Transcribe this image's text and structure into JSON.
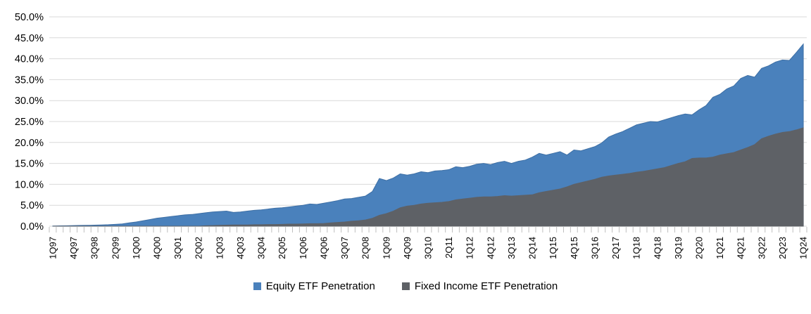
{
  "chart_data": {
    "type": "area",
    "overlapping_series": true,
    "title": "",
    "xlabel": "",
    "ylabel": "",
    "background_color": "#FFFFFF",
    "grid": {
      "visible": true,
      "color": "#D9D9D9",
      "axis_tick_color": "#BFBFBF"
    },
    "y_axis": {
      "min": 0,
      "max": 50,
      "step": 5,
      "tick_labels": [
        "50.0%",
        "45.0%",
        "40.0%",
        "35.0%",
        "30.0%",
        "25.0%",
        "20.0%",
        "15.0%",
        "10.0%",
        "5.0%",
        "0.0%"
      ]
    },
    "x_axis": {
      "frequency": "quarterly",
      "start": "1Q97",
      "end": "1Q24",
      "tick_label_interval": 3,
      "tick_labels": [
        "1Q97",
        "4Q97",
        "3Q98",
        "2Q99",
        "1Q00",
        "4Q00",
        "3Q01",
        "2Q02",
        "1Q03",
        "4Q03",
        "3Q04",
        "2Q05",
        "1Q06",
        "4Q06",
        "3Q07",
        "2Q08",
        "1Q09",
        "4Q09",
        "3Q10",
        "2Q11",
        "1Q12",
        "4Q12",
        "3Q13",
        "2Q14",
        "1Q15",
        "4Q15",
        "3Q16",
        "2Q17",
        "1Q18",
        "4Q18",
        "3Q19",
        "2Q20",
        "1Q21",
        "4Q21",
        "3Q22",
        "2Q23",
        "1Q24"
      ]
    },
    "legend": {
      "position": "bottom-center",
      "items": [
        {
          "label": "Equity ETF Penetration",
          "color": "#4A81BC"
        },
        {
          "label": "Fixed Income ETF Penetration",
          "color": "#5E6166"
        }
      ]
    },
    "series": [
      {
        "name": "Equity ETF Penetration",
        "color": "#4A81BC",
        "edge_color": "#3D6FA5",
        "values": [
          0.05,
          0.08,
          0.1,
          0.15,
          0.18,
          0.2,
          0.25,
          0.3,
          0.35,
          0.45,
          0.55,
          0.8,
          1.0,
          1.3,
          1.6,
          1.9,
          2.1,
          2.3,
          2.5,
          2.7,
          2.8,
          3.0,
          3.2,
          3.4,
          3.5,
          3.6,
          3.3,
          3.4,
          3.6,
          3.8,
          3.9,
          4.1,
          4.3,
          4.4,
          4.6,
          4.8,
          5.0,
          5.3,
          5.2,
          5.5,
          5.8,
          6.1,
          6.5,
          6.6,
          6.9,
          7.2,
          8.3,
          11.4,
          10.9,
          11.5,
          12.5,
          12.2,
          12.5,
          13.0,
          12.8,
          13.2,
          13.3,
          13.5,
          14.2,
          14.0,
          14.3,
          14.8,
          15.0,
          14.7,
          15.2,
          15.5,
          15.0,
          15.5,
          15.8,
          16.5,
          17.4,
          17.0,
          17.4,
          17.8,
          17.0,
          18.2,
          18.0,
          18.5,
          19.0,
          19.9,
          21.3,
          22.0,
          22.6,
          23.4,
          24.2,
          24.6,
          25.0,
          24.9,
          25.4,
          25.9,
          26.4,
          26.8,
          26.6,
          27.8,
          28.8,
          30.8,
          31.5,
          32.8,
          33.5,
          35.3,
          36.0,
          35.6,
          37.7,
          38.3,
          39.2,
          39.7,
          39.6,
          41.5,
          43.5
        ]
      },
      {
        "name": "Fixed Income ETF Penetration",
        "color": "#5E6166",
        "edge_color": "#5E6166",
        "values": [
          0,
          0,
          0,
          0,
          0,
          0,
          0,
          0,
          0,
          0,
          0,
          0,
          0,
          0,
          0,
          0,
          0,
          0,
          0,
          0,
          0,
          0,
          0.1,
          0.15,
          0.2,
          0.25,
          0.3,
          0.3,
          0.3,
          0.35,
          0.35,
          0.4,
          0.4,
          0.45,
          0.5,
          0.5,
          0.55,
          0.6,
          0.6,
          0.65,
          0.8,
          0.9,
          1.0,
          1.2,
          1.3,
          1.5,
          1.9,
          2.6,
          3.0,
          3.6,
          4.4,
          4.8,
          5.0,
          5.3,
          5.5,
          5.6,
          5.7,
          5.9,
          6.3,
          6.5,
          6.7,
          6.9,
          7.0,
          7.0,
          7.1,
          7.3,
          7.2,
          7.3,
          7.4,
          7.5,
          8.0,
          8.3,
          8.6,
          8.9,
          9.4,
          10.0,
          10.4,
          10.8,
          11.2,
          11.7,
          12.0,
          12.2,
          12.4,
          12.6,
          12.9,
          13.1,
          13.4,
          13.7,
          14.0,
          14.5,
          15.0,
          15.4,
          16.2,
          16.3,
          16.3,
          16.5,
          17.0,
          17.3,
          17.6,
          18.2,
          18.8,
          19.5,
          20.9,
          21.5,
          22.0,
          22.4,
          22.6,
          23.0,
          23.5
        ]
      }
    ]
  }
}
